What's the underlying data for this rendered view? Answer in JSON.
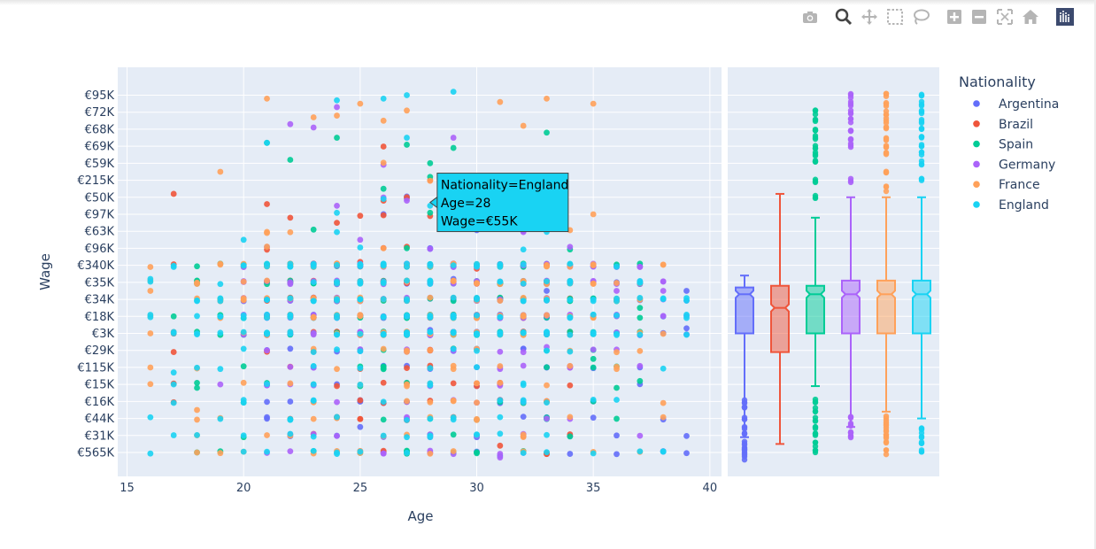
{
  "modebar": {
    "buttons": [
      "camera-icon",
      "zoom-icon",
      "pan-icon",
      "box-select-icon",
      "lasso-icon",
      "zoom-in-icon",
      "zoom-out-icon",
      "autoscale-icon",
      "home-icon",
      "plotly-logo-icon"
    ]
  },
  "colors": {
    "Argentina": "#636efa",
    "Brazil": "#ef553b",
    "Spain": "#00cc96",
    "Germany": "#ab63fa",
    "France": "#ffa15a",
    "England": "#19d3f3",
    "plot_bg": "#e5ecf6",
    "text": "#2a3f5f"
  },
  "chart_data": {
    "type": "scatter",
    "marginal_y": "box",
    "xlabel": "Age",
    "ylabel": "Wage",
    "xlim": [
      14.6,
      40.5
    ],
    "xticks": [
      15,
      20,
      25,
      30,
      35,
      40
    ],
    "y_categories": [
      "€565K",
      "€31K",
      "€44K",
      "€16K",
      "€15K",
      "€115K",
      "€29K",
      "€3K",
      "€18K",
      "€34K",
      "€35K",
      "€340K",
      "€96K",
      "€63K",
      "€97K",
      "€50K",
      "€215K",
      "€59K",
      "€69K",
      "€68K",
      "€72K",
      "€95K"
    ],
    "legend": {
      "title": "Nationality",
      "position": "right",
      "entries": [
        "Argentina",
        "Brazil",
        "Spain",
        "Germany",
        "France",
        "England"
      ]
    },
    "series": [
      {
        "name": "Argentina",
        "ages": [
          21,
          22,
          23,
          24,
          25,
          26,
          27,
          28,
          29,
          30,
          31,
          32,
          33,
          34,
          35,
          36,
          37,
          38,
          39
        ],
        "points": [
          [
            25,
            1.5
          ],
          [
            30,
            0.9
          ],
          [
            31,
            -0.2
          ],
          [
            36,
            1
          ],
          [
            39,
            7.3
          ],
          [
            39,
            9.5
          ],
          [
            35,
            3
          ],
          [
            34,
            10
          ],
          [
            33,
            9.5
          ],
          [
            29,
            10.2
          ],
          [
            28,
            7.2
          ]
        ],
        "box": {
          "min": 0.9,
          "q1": 7,
          "median": 9.3,
          "q3": 9.7,
          "upper": 10.4,
          "max": 10.4,
          "outliers": [
            -0.3,
            0,
            0.3,
            0.6,
            1,
            1.4,
            2,
            2.6,
            3
          ]
        }
      },
      {
        "name": "Brazil",
        "ages": [
          17,
          21,
          22,
          23,
          24,
          25,
          26,
          27,
          28,
          29,
          30,
          31,
          32,
          33,
          34
        ],
        "points": [
          [
            17,
            15.2
          ],
          [
            21,
            14.6
          ],
          [
            22,
            13.8
          ],
          [
            24,
            13.5
          ],
          [
            25,
            11.2
          ],
          [
            26,
            14.8
          ],
          [
            27,
            15
          ],
          [
            28,
            13.9
          ],
          [
            30,
            10.8
          ],
          [
            31,
            0.4
          ],
          [
            34,
            5
          ]
        ],
        "box": {
          "min": 0.5,
          "q1": 5.9,
          "median": 8.5,
          "q3": 9.8,
          "upper": 15.2,
          "max": 15.2,
          "outliers": []
        }
      },
      {
        "name": "Spain",
        "ages": [
          18,
          19,
          20,
          21,
          22,
          23,
          24,
          25,
          26,
          27,
          28,
          29,
          30,
          31,
          32,
          33,
          34,
          35,
          36,
          37
        ],
        "points": [
          [
            17,
            8
          ],
          [
            18,
            3.8
          ],
          [
            21,
            18.2
          ],
          [
            22,
            17.2
          ],
          [
            23,
            13.1
          ],
          [
            24,
            18.5
          ],
          [
            26,
            15.5
          ],
          [
            27,
            0.1
          ],
          [
            28,
            16.2
          ],
          [
            29,
            17.9
          ],
          [
            32,
            11.1
          ],
          [
            33,
            18.8
          ],
          [
            35,
            5.5
          ],
          [
            36,
            3.8
          ],
          [
            37,
            4.2
          ],
          [
            37,
            8.5
          ]
        ],
        "box": {
          "min": 3.9,
          "q1": 7,
          "median": 9.3,
          "q3": 9.8,
          "upper": 13.8,
          "max": 13.8,
          "outliers": [
            0,
            0.5,
            1,
            1.5,
            2,
            2.5,
            3,
            15,
            16,
            17,
            17.5,
            18,
            18.5,
            19,
            19.5,
            20
          ]
        }
      },
      {
        "name": "Germany",
        "ages": [
          20,
          21,
          22,
          23,
          24,
          25,
          26,
          27,
          28,
          29,
          30,
          31,
          32,
          33,
          34,
          35,
          36,
          37,
          38
        ],
        "points": [
          [
            19,
            4
          ],
          [
            22,
            19.3
          ],
          [
            23,
            19.1
          ],
          [
            24,
            20.3
          ],
          [
            24,
            14.5
          ],
          [
            25,
            12.5
          ],
          [
            27,
            14.8
          ],
          [
            29,
            18.5
          ],
          [
            31,
            -0.3
          ],
          [
            33,
            6.2
          ],
          [
            36,
            9.5
          ],
          [
            38,
            9.5
          ]
        ],
        "box": {
          "min": 1.5,
          "q1": 7,
          "median": 9.3,
          "q3": 10.1,
          "upper": 15,
          "max": 15,
          "outliers": [
            1,
            1.3,
            1.6,
            2,
            16,
            18,
            18.5,
            19,
            19.5,
            20,
            20.5,
            21
          ]
        }
      },
      {
        "name": "France",
        "ages": [
          16,
          18,
          19,
          20,
          21,
          22,
          23,
          24,
          25,
          26,
          27,
          28,
          29,
          30,
          31,
          32,
          33,
          34,
          35,
          36,
          37,
          38
        ],
        "points": [
          [
            16,
            7
          ],
          [
            16,
            9.5
          ],
          [
            19,
            16.5
          ],
          [
            21,
            20.8
          ],
          [
            23,
            19.7
          ],
          [
            24,
            19.8
          ],
          [
            25,
            20.5
          ],
          [
            26,
            19.5
          ],
          [
            27,
            20.1
          ],
          [
            31,
            20.6
          ],
          [
            32,
            19.2
          ],
          [
            33,
            20.8
          ],
          [
            35,
            20.5
          ],
          [
            35,
            14
          ],
          [
            18,
            2.5
          ]
        ],
        "box": {
          "min": 2.4,
          "q1": 7,
          "median": 9.3,
          "q3": 10.1,
          "upper": 15,
          "max": 15,
          "outliers": [
            0,
            0.7,
            1,
            1.3,
            1.7,
            2,
            15.5,
            16.5,
            17.5,
            18,
            18.5,
            19,
            19.5,
            20,
            20.5,
            21
          ]
        }
      },
      {
        "name": "England",
        "ages": [
          16,
          17,
          18,
          19,
          20,
          21,
          22,
          23,
          24,
          25,
          26,
          27,
          28,
          29,
          30,
          31,
          32,
          33,
          34,
          35,
          36,
          37,
          38,
          39
        ],
        "points": [
          [
            24,
            20.7
          ],
          [
            26,
            20.8
          ],
          [
            27,
            21
          ],
          [
            29,
            21.2
          ],
          [
            21,
            18.2
          ],
          [
            27,
            18.5
          ],
          [
            20,
            12.5
          ],
          [
            16,
            10.2
          ],
          [
            17,
            4.7
          ],
          [
            17,
            4
          ],
          [
            20,
            1
          ],
          [
            24,
            0
          ],
          [
            28,
            14.5
          ]
        ],
        "box": {
          "min": 2,
          "q1": 7,
          "median": 9.3,
          "q3": 10.1,
          "upper": 15,
          "max": 15,
          "outliers": [
            0,
            0.5,
            1,
            1.5,
            16,
            17,
            17.5,
            18,
            18.5,
            19,
            19.5,
            20,
            20.5,
            21
          ]
        }
      }
    ],
    "hover": {
      "lines": [
        "Nationality=England",
        "Age=28",
        "Wage=€55K"
      ],
      "age": 28,
      "wage_index": 14.7,
      "series": "England"
    }
  }
}
